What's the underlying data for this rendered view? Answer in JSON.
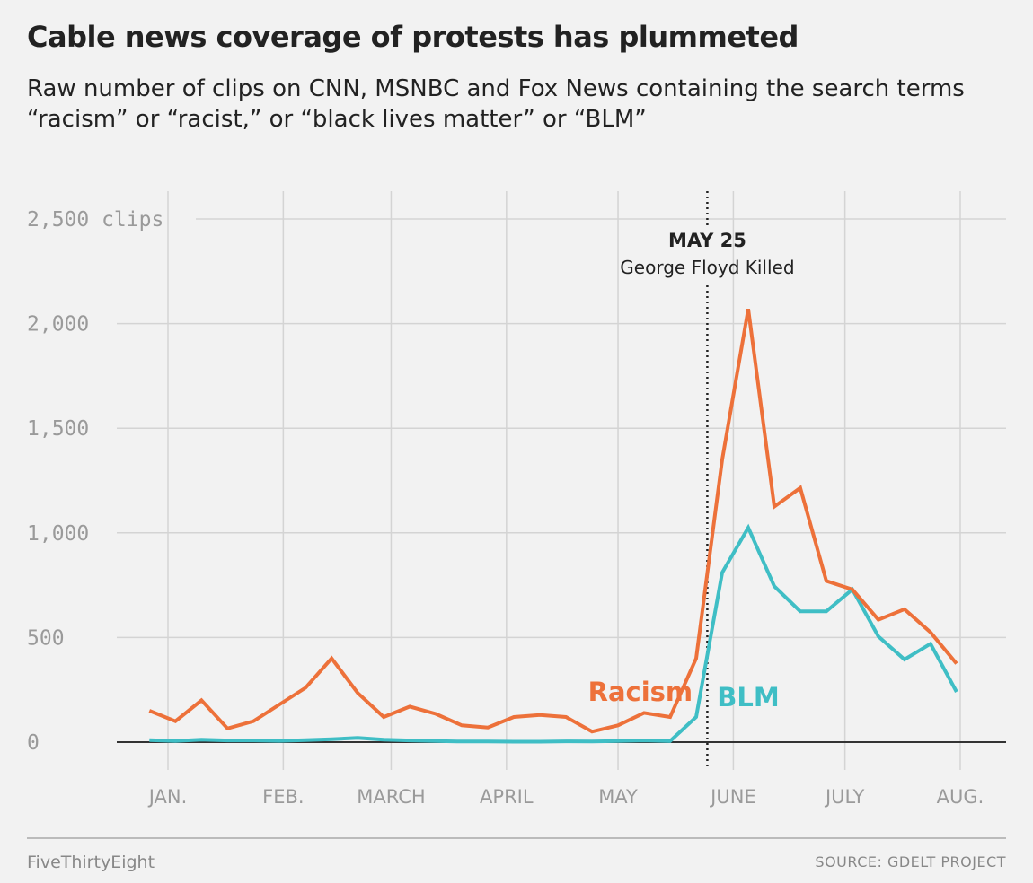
{
  "header": {
    "title": "Cable news coverage of protests has plummeted",
    "subtitle": "Raw number of clips on CNN, MSNBC and Fox News containing the search terms “racism” or “racist,” or “black lives matter” or “BLM”"
  },
  "footer": {
    "brand": "FiveThirtyEight",
    "source": "SOURCE: GDELT PROJECT"
  },
  "chart_data": {
    "type": "line",
    "title": "Cable news coverage of protests has plummeted",
    "subtitle": "Raw number of clips on CNN, MSNBC and Fox News containing the search terms “racism” or “racist,” or “black lives matter” or “BLM”",
    "xlabel": "",
    "ylabel": "",
    "ylim": [
      0,
      2500
    ],
    "xlim": [
      "2019-12-25",
      "2020-08-13"
    ],
    "y_ticks": [
      0,
      500,
      1000,
      1500,
      2000,
      2500
    ],
    "y_tick_labels": [
      "0",
      "500",
      "1,000",
      "1,500",
      "2,000",
      "2,500 clips"
    ],
    "x_ticks": [
      "2020-01-01",
      "2020-02-01",
      "2020-03-01",
      "2020-04-01",
      "2020-05-01",
      "2020-06-01",
      "2020-07-01",
      "2020-08-01"
    ],
    "x_tick_labels": [
      "JAN.",
      "FEB.",
      "MARCH",
      "APRIL",
      "MAY",
      "JUNE",
      "JULY",
      "AUG."
    ],
    "grid": true,
    "annotations": [
      {
        "x": "2020-05-25",
        "date_label": "MAY 25",
        "text": "George Floyd Killed",
        "style": "dotted-vertical-line"
      }
    ],
    "series": [
      {
        "name": "Racism",
        "color": "#ed713a",
        "x": [
          "2019-12-27",
          "2020-01-03",
          "2020-01-10",
          "2020-01-17",
          "2020-01-24",
          "2020-01-31",
          "2020-02-07",
          "2020-02-14",
          "2020-02-21",
          "2020-02-28",
          "2020-03-06",
          "2020-03-13",
          "2020-03-20",
          "2020-03-27",
          "2020-04-03",
          "2020-04-10",
          "2020-04-17",
          "2020-04-24",
          "2020-05-01",
          "2020-05-08",
          "2020-05-15",
          "2020-05-22",
          "2020-05-29",
          "2020-06-05",
          "2020-06-12",
          "2020-06-19",
          "2020-06-26",
          "2020-07-03",
          "2020-07-10",
          "2020-07-17",
          "2020-07-24",
          "2020-07-31"
        ],
        "values": [
          150,
          100,
          200,
          65,
          100,
          180,
          260,
          400,
          235,
          120,
          170,
          135,
          80,
          70,
          120,
          130,
          120,
          50,
          80,
          140,
          120,
          400,
          1350,
          2070,
          1125,
          1215,
          770,
          730,
          585,
          635,
          525,
          375
        ]
      },
      {
        "name": "BLM",
        "color": "#3fbec5",
        "x": [
          "2019-12-27",
          "2020-01-03",
          "2020-01-10",
          "2020-01-17",
          "2020-01-24",
          "2020-01-31",
          "2020-02-07",
          "2020-02-14",
          "2020-02-21",
          "2020-02-28",
          "2020-03-06",
          "2020-03-13",
          "2020-03-20",
          "2020-03-27",
          "2020-04-03",
          "2020-04-10",
          "2020-04-17",
          "2020-04-24",
          "2020-05-01",
          "2020-05-08",
          "2020-05-15",
          "2020-05-22",
          "2020-05-29",
          "2020-06-05",
          "2020-06-12",
          "2020-06-19",
          "2020-06-26",
          "2020-07-03",
          "2020-07-10",
          "2020-07-17",
          "2020-07-24",
          "2020-07-31"
        ],
        "values": [
          10,
          5,
          12,
          8,
          8,
          6,
          10,
          14,
          20,
          12,
          8,
          5,
          3,
          3,
          2,
          2,
          4,
          3,
          5,
          8,
          5,
          120,
          810,
          1025,
          745,
          625,
          625,
          730,
          505,
          395,
          470,
          240
        ]
      }
    ],
    "series_label_anchors": [
      "2020-05-07",
      "2020-06-05"
    ]
  }
}
